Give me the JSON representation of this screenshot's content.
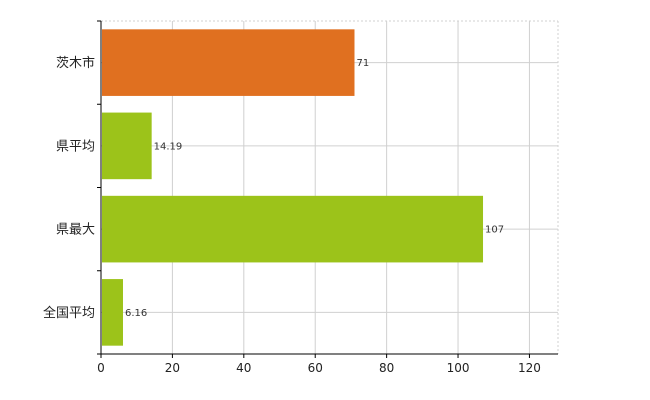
{
  "chart_data": {
    "type": "bar",
    "orientation": "horizontal",
    "categories": [
      "茨木市",
      "県平均",
      "県最大",
      "全国平均"
    ],
    "values": [
      71,
      14.19,
      107,
      6.16
    ],
    "value_labels": [
      "71",
      "14.19",
      "107",
      "6.16"
    ],
    "bar_colors": [
      "#e07020",
      "#9cc31a",
      "#9cc31a",
      "#9cc31a"
    ],
    "xlim": [
      0,
      128
    ],
    "x_ticks": [
      0,
      20,
      40,
      60,
      80,
      100,
      120
    ],
    "x_tick_labels": [
      "0",
      "20",
      "40",
      "60",
      "80",
      "100",
      "120"
    ],
    "grid": true,
    "title": "",
    "xlabel": "",
    "ylabel": ""
  }
}
